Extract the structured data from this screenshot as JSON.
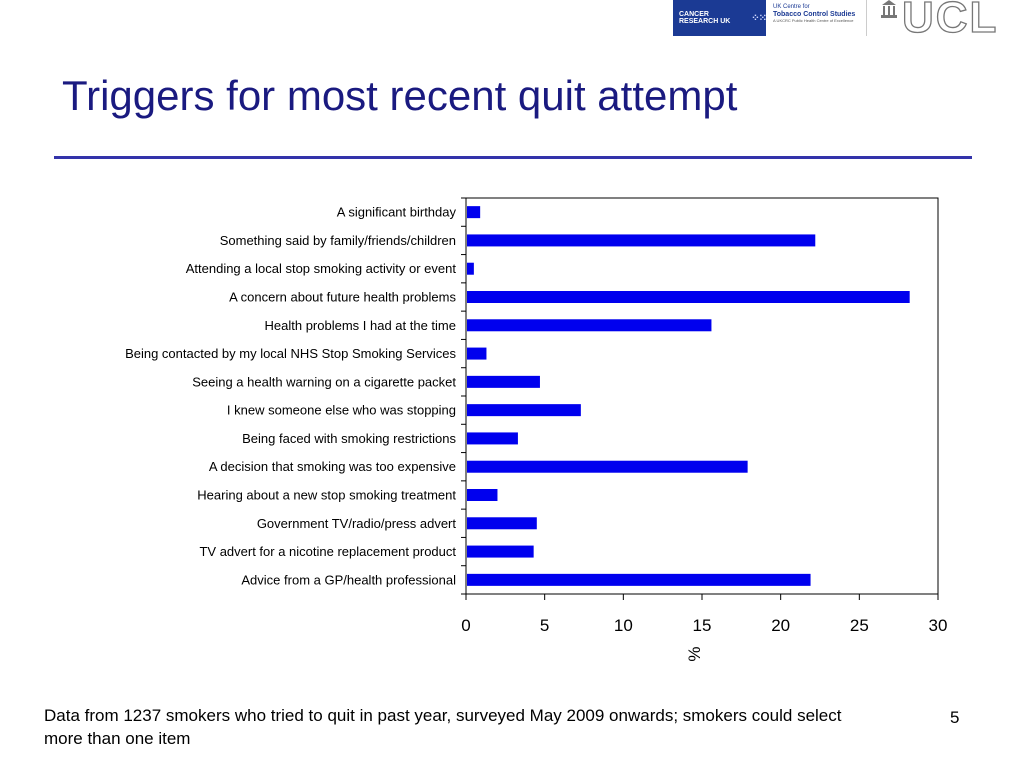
{
  "header": {
    "logos": {
      "cruk": "CANCER RESEARCH UK",
      "tcs_top": "UK Centre for",
      "tcs_name": "Tobacco Control Studies",
      "tcs_sub": "A UKCRC Public Health Centre of Excellence",
      "ucl": "UCL"
    }
  },
  "slide": {
    "title": "Triggers for most recent quit attempt",
    "footnote": "Data from 1237 smokers who tried to quit in past year, surveyed May 2009 onwards; smokers could select more than one item",
    "page_number": "5"
  },
  "colors": {
    "bar": "#0000ee",
    "title": "#1a1a80",
    "rule": "#3333aa"
  },
  "chart_data": {
    "type": "bar",
    "orientation": "horizontal",
    "title": "",
    "xlabel": "%",
    "ylabel": "",
    "xlim": [
      0,
      30
    ],
    "xticks": [
      0,
      5,
      10,
      15,
      20,
      25,
      30
    ],
    "grid": false,
    "categories": [
      "A significant birthday",
      "Something said by family/friends/children",
      "Attending a local stop smoking activity or event",
      "A concern about future health problems",
      "Health problems I had at the time",
      "Being contacted by my local NHS Stop Smoking Services",
      "Seeing a health warning on a cigarette packet",
      "I knew someone else who was stopping",
      "Being faced with smoking restrictions",
      "A decision that smoking was too expensive",
      "Hearing about a new stop smoking treatment",
      "Government TV/radio/press advert",
      "TV advert for a nicotine replacement product",
      "Advice from a GP/health professional"
    ],
    "values": [
      0.9,
      22.2,
      0.5,
      28.2,
      15.6,
      1.3,
      4.7,
      7.3,
      3.3,
      17.9,
      2.0,
      4.5,
      4.3,
      21.9
    ]
  }
}
